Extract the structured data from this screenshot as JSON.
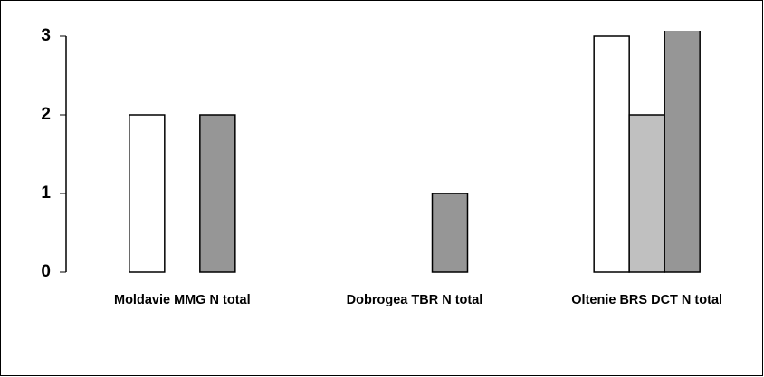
{
  "chart_data": {
    "type": "bar",
    "categories": [
      "Moldavie MMG N total",
      "Dobrogea TBR N total",
      "Oltenie BRS DCT N total"
    ],
    "series": [
      {
        "color": "#ffffff",
        "values": [
          2,
          0,
          3
        ]
      },
      {
        "color": "#c0c0c0",
        "values": [
          0,
          0,
          2
        ]
      },
      {
        "color": "#969696",
        "values": [
          2,
          1,
          3.1
        ]
      }
    ],
    "ylim": [
      0,
      3.07
    ],
    "yticks": [
      0,
      1,
      2,
      3
    ],
    "grid": false
  }
}
